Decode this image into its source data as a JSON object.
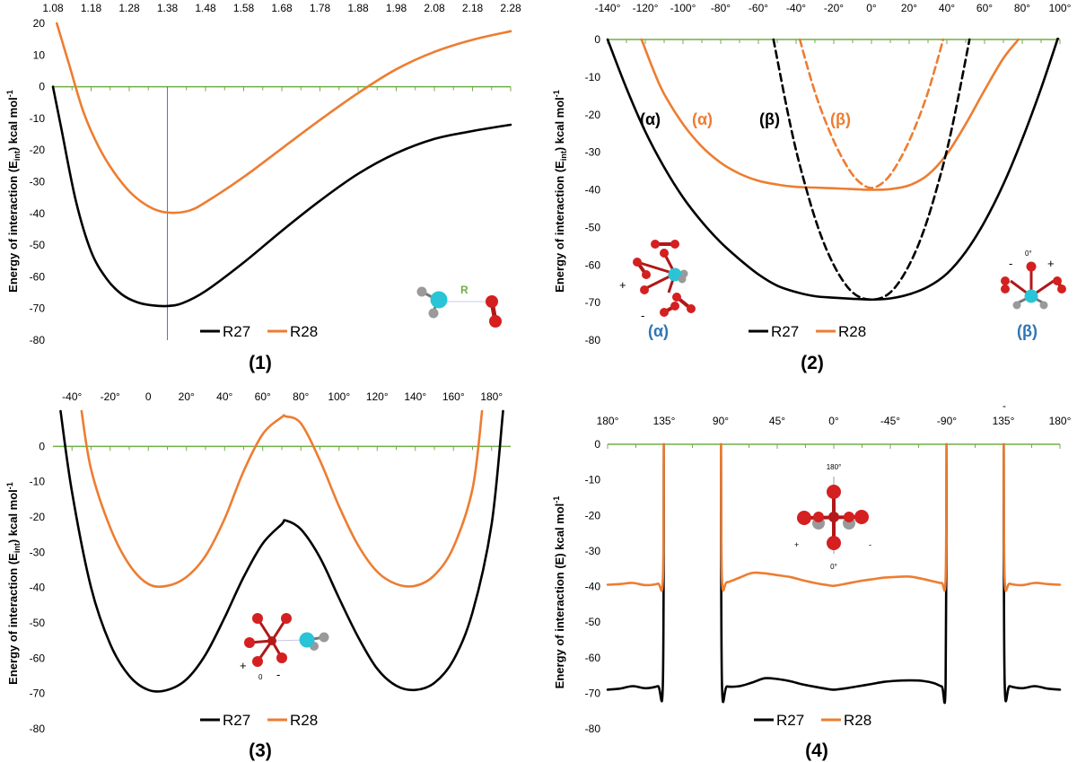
{
  "figure": {
    "colors": {
      "r27": "#000000",
      "r28": "#ed7d31",
      "zero_line": "#70ad47",
      "guide": "#4f6df5",
      "greek_blue": "#2e75b6",
      "atom_red": "#d42020",
      "atom_cyan": "#29c4d6",
      "atom_grey": "#9a9a9a",
      "axis_label": "#000000"
    }
  },
  "chart_data": [
    {
      "id": "panel-1",
      "type": "line",
      "panel_label": "(1)",
      "ylabel": "Energy of interaction (Eint) kcal mol-1",
      "ylabel_parts": {
        "main": "Energy of interaction (E",
        "sub": "int",
        "mid": ") kcal mol",
        "sup": "-1"
      },
      "xlim": [
        1.08,
        2.28
      ],
      "ylim": [
        -80,
        20
      ],
      "x_ticks": [
        1.08,
        1.18,
        1.28,
        1.38,
        1.48,
        1.58,
        1.68,
        1.78,
        1.88,
        1.98,
        2.08,
        2.18,
        2.28
      ],
      "x_tick_labels": [
        "1.08",
        "1.18",
        "1.28",
        "1.38",
        "1.48",
        "1.58",
        "1.68",
        "1.78",
        "1.88",
        "1.98",
        "2.08",
        "2.18",
        "2.28"
      ],
      "y_ticks": [
        20,
        10,
        0,
        -10,
        -20,
        -30,
        -40,
        -50,
        -60,
        -70,
        -80
      ],
      "y_tick_labels": [
        "20",
        "10",
        "0",
        "-10",
        "-20",
        "-30",
        "-40",
        "-50",
        "-60",
        "-70",
        "-80"
      ],
      "guide_x": 1.38,
      "series": [
        {
          "name": "R27",
          "style": "solid",
          "x": [
            1.08,
            1.1,
            1.14,
            1.18,
            1.22,
            1.26,
            1.3,
            1.34,
            1.38,
            1.42,
            1.48,
            1.58,
            1.68,
            1.78,
            1.88,
            1.98,
            2.08,
            2.18,
            2.28
          ],
          "y": [
            0,
            -12,
            -36,
            -52,
            -60.5,
            -65.5,
            -68,
            -69,
            -69.2,
            -68.3,
            -64.5,
            -55.5,
            -45.5,
            -36,
            -27.5,
            -21,
            -16.5,
            -14,
            -12
          ]
        },
        {
          "name": "R28",
          "style": "solid",
          "x": [
            1.09,
            1.12,
            1.16,
            1.2,
            1.24,
            1.28,
            1.32,
            1.36,
            1.4,
            1.44,
            1.48,
            1.58,
            1.68,
            1.78,
            1.88,
            1.98,
            2.08,
            2.18,
            2.28
          ],
          "y": [
            20,
            8,
            -8,
            -19,
            -27,
            -33,
            -37,
            -39.3,
            -39.8,
            -39,
            -36.5,
            -28.5,
            -19.5,
            -10.5,
            -2,
            5.5,
            11,
            14.8,
            17.5
          ]
        }
      ],
      "legend": [
        "R27",
        "R28"
      ],
      "legend_position": "bottom-center",
      "annotations": {
        "bond_label": "R"
      }
    },
    {
      "id": "panel-2",
      "type": "line",
      "panel_label": "(2)",
      "ylabel": "Energy of interaction (Eint) kcal mol-1",
      "ylabel_parts": {
        "main": "Energy of interaction (E",
        "sub": "int",
        "mid": ") kcal mol",
        "sup": "-1"
      },
      "xlim": [
        -140,
        100
      ],
      "ylim": [
        -80,
        0
      ],
      "x_ticks": [
        -140,
        -120,
        -100,
        -80,
        -60,
        -40,
        -20,
        0,
        20,
        40,
        60,
        80,
        100
      ],
      "x_tick_labels": [
        "-140°",
        "-120°",
        "-100°",
        "-80°",
        "-60°",
        "-40°",
        "-20°",
        "0°",
        "20°",
        "40°",
        "60°",
        "80°",
        "100°"
      ],
      "y_ticks": [
        0,
        -10,
        -20,
        -30,
        -40,
        -50,
        -60,
        -70,
        -80
      ],
      "y_tick_labels": [
        "0",
        "-10",
        "-20",
        "-30",
        "-40",
        "-50",
        "-60",
        "-70",
        "-80"
      ],
      "series": [
        {
          "name": "R27 (α)",
          "style": "solid",
          "x": [
            -140,
            -130,
            -120,
            -110,
            -100,
            -90,
            -80,
            -70,
            -60,
            -50,
            -40,
            -30,
            -20,
            -10,
            0,
            10,
            20,
            30,
            40,
            50,
            60,
            70,
            80,
            90,
            100
          ],
          "y": [
            0,
            -13,
            -24.5,
            -34,
            -42,
            -48.5,
            -54,
            -58.5,
            -62.5,
            -65.5,
            -67.2,
            -68.3,
            -68.7,
            -69,
            -69.2,
            -68.9,
            -67.8,
            -65.8,
            -62.3,
            -56.5,
            -48.5,
            -38.5,
            -26.5,
            -13,
            2
          ]
        },
        {
          "name": "R28 (α)",
          "style": "solid",
          "x": [
            -122,
            -115,
            -110,
            -100,
            -90,
            -80,
            -70,
            -60,
            -50,
            -40,
            -30,
            -20,
            -10,
            0,
            10,
            20,
            30,
            40,
            50,
            60,
            70,
            78
          ],
          "y": [
            0,
            -9,
            -14.5,
            -22.5,
            -28.5,
            -32.8,
            -35.7,
            -37.6,
            -38.6,
            -39.2,
            -39.4,
            -39.6,
            -39.8,
            -40,
            -39.8,
            -38.8,
            -36,
            -30.5,
            -22.5,
            -13.5,
            -5,
            0
          ]
        },
        {
          "name": "R27 (β)",
          "style": "dashed",
          "x": [
            -52,
            -45,
            -40,
            -35,
            -30,
            -25,
            -20,
            -15,
            -10,
            -5,
            0,
            5,
            10,
            15,
            20,
            25,
            30,
            35,
            40,
            45,
            52
          ],
          "y": [
            0,
            -18,
            -29.5,
            -39,
            -47.5,
            -54.5,
            -60,
            -64.3,
            -67.3,
            -68.8,
            -69.2,
            -68.8,
            -67.3,
            -64.3,
            -60,
            -54.5,
            -47.5,
            -39,
            -29.5,
            -18,
            0
          ]
        },
        {
          "name": "R28 (β)",
          "style": "dashed",
          "x": [
            -38,
            -35,
            -30,
            -25,
            -20,
            -15,
            -10,
            -5,
            0,
            5,
            10,
            15,
            20,
            25,
            30,
            35,
            38
          ],
          "y": [
            0,
            -5.5,
            -14,
            -21,
            -27,
            -32,
            -36,
            -38.5,
            -39.5,
            -38.5,
            -36,
            -32,
            -27,
            -21,
            -14,
            -5.5,
            0
          ]
        }
      ],
      "curve_labels": [
        {
          "text": "(α)",
          "series": "R27 (α)"
        },
        {
          "text": "(α)",
          "series": "R28 (α)"
        },
        {
          "text": "(β)",
          "series": "R27 (β)"
        },
        {
          "text": "(β)",
          "series": "R28 (β)"
        }
      ],
      "legend": [
        "R27",
        "R28"
      ],
      "legend_position": "bottom-center",
      "annotations": {
        "alpha_caption": "(α)",
        "beta_caption": "(β)",
        "plus": "+",
        "minus": "-",
        "zero_deg": "0°"
      }
    },
    {
      "id": "panel-3",
      "type": "line",
      "panel_label": "(3)",
      "ylabel": "Energy of interaction (Eint) kcal mol-1",
      "ylabel_parts": {
        "main": "Energy of interaction (E",
        "sub": "int",
        "mid": ") kcal mol",
        "sup": "-1"
      },
      "xlim": [
        -50,
        190
      ],
      "ylim": [
        -80,
        10
      ],
      "x_ticks": [
        -40,
        -20,
        0,
        20,
        40,
        60,
        80,
        100,
        120,
        140,
        160,
        180
      ],
      "x_tick_labels": [
        "-40°",
        "-20°",
        "0",
        "20°",
        "40°",
        "60°",
        "80°",
        "100°",
        "120°",
        "140°",
        "160°",
        "180°"
      ],
      "y_ticks": [
        0,
        -10,
        -20,
        -30,
        -40,
        -50,
        -60,
        -70,
        -80
      ],
      "y_tick_labels": [
        "0",
        "-10",
        "-20",
        "-30",
        "-40",
        "-50",
        "-60",
        "-70",
        "-80"
      ],
      "series": [
        {
          "name": "R27",
          "style": "solid",
          "x": [
            -46,
            -40,
            -30,
            -20,
            -10,
            0,
            10,
            20,
            30,
            40,
            50,
            60,
            70,
            72,
            80,
            90,
            100,
            110,
            120,
            130,
            140,
            150,
            160,
            170,
            180,
            186
          ],
          "y": [
            10,
            -13,
            -40,
            -56,
            -65,
            -69,
            -69,
            -66,
            -59,
            -48.5,
            -37,
            -27.5,
            -22,
            -21,
            -23.5,
            -31.5,
            -43,
            -54,
            -63,
            -67.8,
            -69,
            -67,
            -60.5,
            -47,
            -22,
            10
          ]
        },
        {
          "name": "R28",
          "style": "solid",
          "x": [
            -35,
            -30,
            -20,
            -10,
            0,
            10,
            20,
            30,
            40,
            50,
            60,
            70,
            72,
            80,
            90,
            100,
            110,
            120,
            130,
            140,
            150,
            160,
            170,
            175
          ],
          "y": [
            10,
            -6.5,
            -23,
            -33.5,
            -39,
            -39.5,
            -37,
            -31,
            -20.5,
            -7,
            3.5,
            8.3,
            8.5,
            6.5,
            -4,
            -17,
            -28,
            -35.5,
            -39,
            -39.5,
            -36.5,
            -28.5,
            -12,
            10
          ]
        }
      ],
      "legend": [
        "R27",
        "R28"
      ],
      "legend_position": "bottom-center",
      "annotations": {
        "plus": "+",
        "minus": "-",
        "zero_mark": "0"
      }
    },
    {
      "id": "panel-4",
      "type": "line",
      "panel_label": "(4)",
      "ylabel": "Energy of interaction (E) kcal mol-1",
      "ylabel_parts": {
        "main": "Energy of interaction (E) kcal mol",
        "sup": "-1"
      },
      "xlim": [
        180,
        -180
      ],
      "ylim": [
        -80,
        0
      ],
      "x_ticks": [
        180,
        135,
        90,
        45,
        0,
        -45,
        -90,
        -135,
        -180
      ],
      "x_tick_labels": [
        "180°",
        "135°",
        "90°",
        "45°",
        "0°",
        "-45°",
        "-90°",
        "135°",
        "180°"
      ],
      "minus_above_label": "-",
      "y_ticks": [
        0,
        -10,
        -20,
        -30,
        -40,
        -50,
        -60,
        -70,
        -80
      ],
      "y_tick_labels": [
        "0",
        "-10",
        "-20",
        "-30",
        "-40",
        "-50",
        "-60",
        "-70",
        "-80"
      ],
      "series": [
        {
          "name": "R27",
          "style": "solid",
          "segments": [
            {
              "x": [
                180,
                170,
                160,
                150,
                140,
                136,
                135.2
              ],
              "y": [
                -69,
                -68.7,
                -68,
                -68.6,
                -68,
                -67,
                0
              ]
            },
            {
              "x": [
                89.8,
                89,
                85,
                75,
                65,
                55,
                45,
                35,
                25,
                15,
                5,
                0,
                -10,
                -20,
                -30,
                -40,
                -50,
                -60,
                -70,
                -80,
                -86,
                -89,
                -89.8
              ],
              "y": [
                0,
                -67.2,
                -68.1,
                -68,
                -67,
                -65.8,
                -66,
                -66.6,
                -67.5,
                -68.2,
                -68.8,
                -69,
                -68.6,
                -68,
                -67.4,
                -66.8,
                -66.5,
                -66.4,
                -66.5,
                -67.2,
                -68.1,
                -67.5,
                0
              ]
            },
            {
              "x": [
                -135.2,
                -136,
                -140,
                -150,
                -160,
                -170,
                -180
              ],
              "y": [
                0,
                -67,
                -68,
                -68.6,
                -68,
                -68.7,
                -69
              ]
            }
          ]
        },
        {
          "name": "R28",
          "style": "solid",
          "segments": [
            {
              "x": [
                180,
                170,
                160,
                150,
                140,
                136,
                135.2
              ],
              "y": [
                -39.5,
                -39.3,
                -39,
                -39.6,
                -39.2,
                -38,
                0
              ]
            },
            {
              "x": [
                89.8,
                89,
                85,
                75,
                65,
                55,
                45,
                35,
                25,
                15,
                5,
                0,
                -10,
                -20,
                -30,
                -40,
                -50,
                -60,
                -70,
                -80,
                -86,
                -89,
                -89.8
              ],
              "y": [
                0,
                -38,
                -38.8,
                -37.5,
                -36.2,
                -36.3,
                -36.8,
                -37.3,
                -38.2,
                -39,
                -39.6,
                -39.8,
                -39.2,
                -38.5,
                -38,
                -37.5,
                -37.3,
                -37.2,
                -37.8,
                -38.6,
                -39,
                -38,
                0
              ]
            },
            {
              "x": [
                -135.2,
                -136,
                -140,
                -150,
                -160,
                -170,
                -180
              ],
              "y": [
                0,
                -38,
                -39.2,
                -39.6,
                -39,
                -39.3,
                -39.5
              ]
            }
          ]
        }
      ],
      "legend": [
        "R27",
        "R28"
      ],
      "legend_position": "bottom-center",
      "annotations": {
        "top_deg": "180°",
        "bottom_deg": "0°",
        "plus": "+",
        "minus": "-"
      }
    }
  ]
}
